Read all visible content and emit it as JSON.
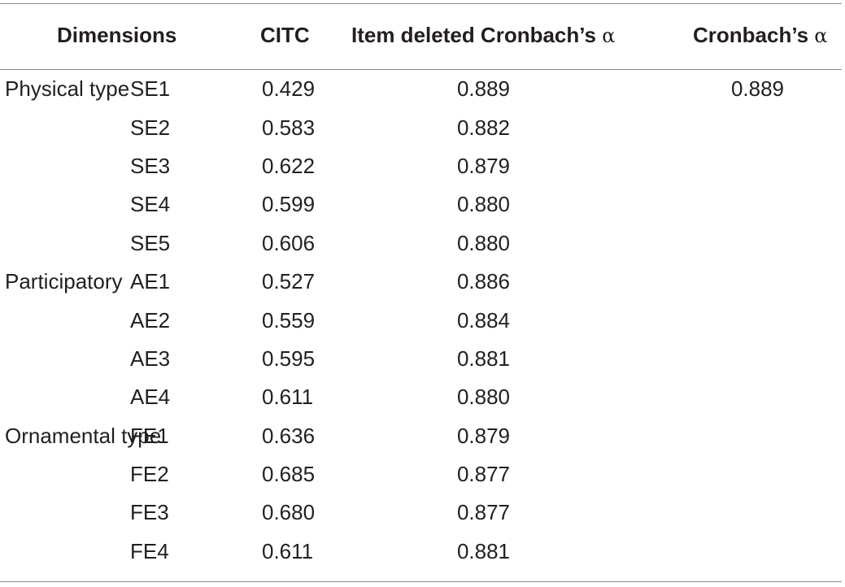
{
  "header": {
    "dimensions": "Dimensions",
    "citc": "CITC",
    "item_deleted": "Item deleted Cronbach’s",
    "cronbach": "Cronbach’s",
    "alpha_symbol": "α"
  },
  "rows": [
    {
      "dimension": "Physical type",
      "item": "SE1",
      "citc": "0.429",
      "deleted": "0.889",
      "alpha": "0.889"
    },
    {
      "dimension": "",
      "item": "SE2",
      "citc": "0.583",
      "deleted": "0.882",
      "alpha": ""
    },
    {
      "dimension": "",
      "item": "SE3",
      "citc": "0.622",
      "deleted": "0.879",
      "alpha": ""
    },
    {
      "dimension": "",
      "item": "SE4",
      "citc": "0.599",
      "deleted": "0.880",
      "alpha": ""
    },
    {
      "dimension": "",
      "item": "SE5",
      "citc": "0.606",
      "deleted": "0.880",
      "alpha": ""
    },
    {
      "dimension": "Participatory",
      "item": "AE1",
      "citc": "0.527",
      "deleted": "0.886",
      "alpha": ""
    },
    {
      "dimension": "",
      "item": "AE2",
      "citc": "0.559",
      "deleted": "0.884",
      "alpha": ""
    },
    {
      "dimension": "",
      "item": "AE3",
      "citc": "0.595",
      "deleted": "0.881",
      "alpha": ""
    },
    {
      "dimension": "",
      "item": "AE4",
      "citc": "0.611",
      "deleted": "0.880",
      "alpha": ""
    },
    {
      "dimension": "Ornamental type",
      "item": "FE1",
      "citc": "0.636",
      "deleted": "0.879",
      "alpha": ""
    },
    {
      "dimension": "",
      "item": "FE2",
      "citc": "0.685",
      "deleted": "0.877",
      "alpha": ""
    },
    {
      "dimension": "",
      "item": "FE3",
      "citc": "0.680",
      "deleted": "0.877",
      "alpha": ""
    },
    {
      "dimension": "",
      "item": "FE4",
      "citc": "0.611",
      "deleted": "0.881",
      "alpha": ""
    }
  ]
}
